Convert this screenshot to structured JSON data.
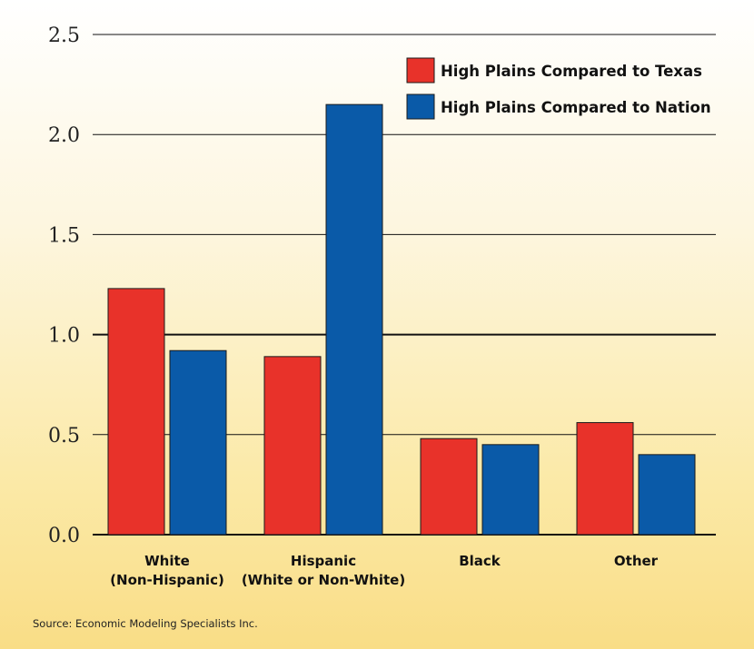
{
  "chart_data": {
    "type": "bar",
    "categories": [
      [
        "White",
        "(Non-Hispanic)"
      ],
      [
        "Hispanic",
        "(White or Non-White)"
      ],
      [
        "Black"
      ],
      [
        "Other"
      ]
    ],
    "series": [
      {
        "name": "High Plains Compared to Texas",
        "color": "#e8322a",
        "values": [
          1.23,
          0.89,
          0.48,
          0.56
        ]
      },
      {
        "name": "High Plains Compared to Nation",
        "color": "#0a5aa8",
        "values": [
          0.92,
          2.15,
          0.45,
          0.4
        ]
      }
    ],
    "ylim": [
      0,
      2.5
    ],
    "yticks": [
      "0.0",
      "0.5",
      "1.0",
      "1.5",
      "2.0",
      "2.5"
    ],
    "ytick_values": [
      0,
      0.5,
      1.0,
      1.5,
      2.0,
      2.5
    ],
    "emphasized_gridline": 1.0,
    "grid": true,
    "legend_position": "top-right"
  },
  "source": "Source: Economic Modeling Specialists Inc."
}
